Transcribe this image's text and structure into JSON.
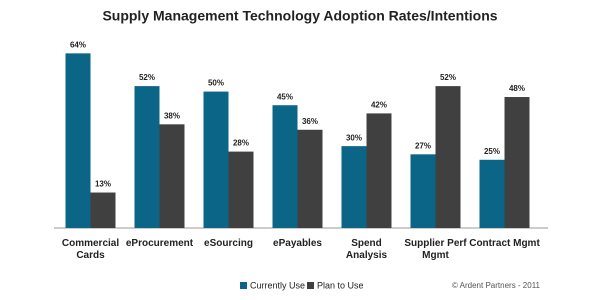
{
  "chart_data": {
    "type": "bar",
    "title": "Supply Management Technology Adoption Rates/Intentions",
    "categories": [
      "Commercial Cards",
      "eProcurement",
      "eSourcing",
      "ePayables",
      "Spend Analysis",
      "Supplier Perf Mgmt",
      "Contract Mgmt"
    ],
    "series": [
      {
        "name": "Currently Use",
        "color": "#0b6587",
        "values": [
          64,
          52,
          50,
          45,
          30,
          27,
          25
        ],
        "value_labels": [
          "64%",
          "52%",
          "50%",
          "45%",
          "30%",
          "27%",
          "25%"
        ]
      },
      {
        "name": "Plan to Use",
        "color": "#404040",
        "values": [
          13,
          38,
          28,
          36,
          42,
          52,
          48
        ],
        "value_labels": [
          "13%",
          "38%",
          "28%",
          "36%",
          "42%",
          "52%",
          "48%"
        ]
      }
    ],
    "ylim": [
      0,
      70
    ],
    "legend": "bottom",
    "credit": "© Ardent Partners - 2011"
  }
}
